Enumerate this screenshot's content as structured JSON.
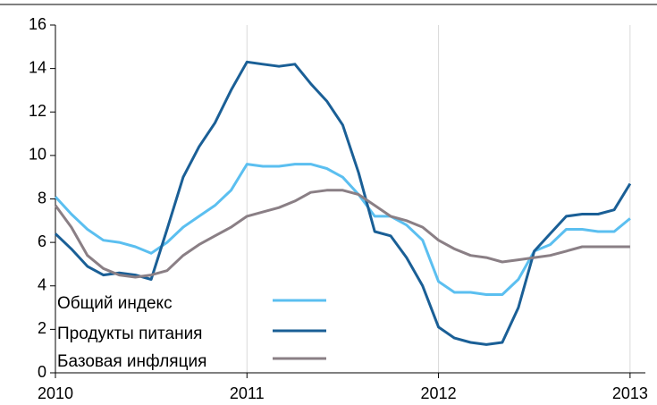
{
  "chart_data": {
    "type": "line",
    "x": [
      2010,
      2010.083,
      2010.167,
      2010.25,
      2010.333,
      2010.417,
      2010.5,
      2010.583,
      2010.667,
      2010.75,
      2010.833,
      2010.917,
      2011,
      2011.083,
      2011.167,
      2011.25,
      2011.333,
      2011.417,
      2011.5,
      2011.583,
      2011.667,
      2011.75,
      2011.833,
      2011.917,
      2012,
      2012.083,
      2012.167,
      2012.25,
      2012.333,
      2012.417,
      2012.5,
      2012.583,
      2012.667,
      2012.75,
      2012.833,
      2012.917,
      2013
    ],
    "series": [
      {
        "name": "Общий индекс",
        "color": "#5bbff0",
        "values": [
          8.1,
          7.3,
          6.6,
          6.1,
          6.0,
          5.8,
          5.5,
          6.0,
          6.7,
          7.2,
          7.7,
          8.4,
          9.6,
          9.5,
          9.5,
          9.6,
          9.6,
          9.4,
          9.0,
          8.2,
          7.2,
          7.2,
          6.8,
          6.1,
          4.2,
          3.7,
          3.7,
          3.6,
          3.6,
          4.3,
          5.6,
          5.9,
          6.6,
          6.6,
          6.5,
          6.5,
          7.1
        ]
      },
      {
        "name": "Продукты питания",
        "color": "#1a5f96",
        "values": [
          6.4,
          5.7,
          4.9,
          4.5,
          4.6,
          4.5,
          4.3,
          6.6,
          9.0,
          10.4,
          11.5,
          13.0,
          14.3,
          14.2,
          14.1,
          14.2,
          13.3,
          12.5,
          11.4,
          9.2,
          6.5,
          6.3,
          5.3,
          4.0,
          2.1,
          1.6,
          1.4,
          1.3,
          1.4,
          3.0,
          5.6,
          6.4,
          7.2,
          7.3,
          7.3,
          7.5,
          8.7
        ]
      },
      {
        "name": "Базовая инфляция",
        "color": "#8a7f85",
        "values": [
          7.7,
          6.7,
          5.4,
          4.8,
          4.5,
          4.4,
          4.5,
          4.7,
          5.4,
          5.9,
          6.3,
          6.7,
          7.2,
          7.4,
          7.6,
          7.9,
          8.3,
          8.4,
          8.4,
          8.2,
          7.7,
          7.2,
          7.0,
          6.7,
          6.1,
          5.7,
          5.4,
          5.3,
          5.1,
          5.2,
          5.3,
          5.4,
          5.6,
          5.8,
          5.8,
          5.8,
          5.8
        ]
      }
    ],
    "xlim": [
      2010,
      2013.08
    ],
    "xticks": [
      2010,
      2011,
      2012,
      2013
    ],
    "ylim": [
      0,
      16
    ],
    "yticks": [
      0,
      2,
      4,
      6,
      8,
      10,
      12,
      14,
      16
    ],
    "grid": "x",
    "legend": "lower left"
  }
}
